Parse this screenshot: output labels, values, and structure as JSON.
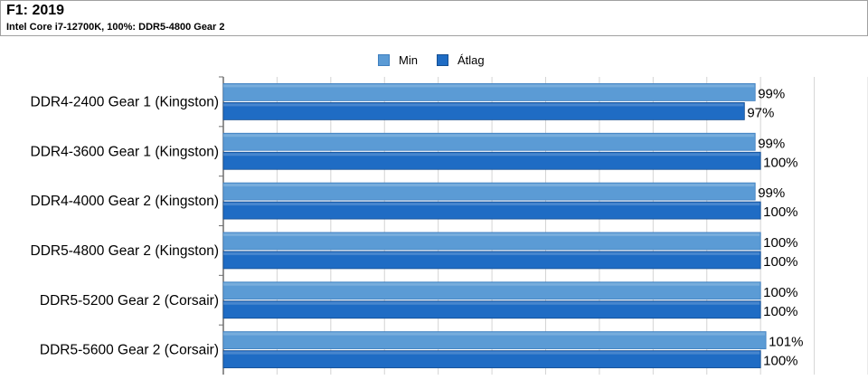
{
  "header": {
    "title": "F1: 2019",
    "subtitle": "Intel Core i7-12700K, 100%: DDR5-4800 Gear 2"
  },
  "colors": {
    "min": "#5b9bd5",
    "avg": "#1f6cc4",
    "grid": "#d4d4d4",
    "axis": "#6e6e6e"
  },
  "chart_data": {
    "type": "bar",
    "orientation": "horizontal",
    "title": "F1: 2019",
    "subtitle": "Intel Core i7-12700K, 100%: DDR5-4800 Gear 2",
    "legend_position": "top-center",
    "grid": true,
    "xlim": [
      0,
      120
    ],
    "categories": [
      "DDR4-2400 Gear 1 (Kingston)",
      "DDR4-3600 Gear 1 (Kingston)",
      "DDR4-4000 Gear 2 (Kingston)",
      "DDR5-4800 Gear 2 (Kingston)",
      "DDR5-5200 Gear 2 (Corsair)",
      "DDR5-5600 Gear 2 (Corsair)"
    ],
    "series": [
      {
        "name": "Min",
        "values": [
          99,
          99,
          99,
          100,
          100,
          101
        ],
        "labels": [
          "99%",
          "99%",
          "99%",
          "100%",
          "100%",
          "101%"
        ]
      },
      {
        "name": "Átlag",
        "values": [
          97,
          100,
          100,
          100,
          100,
          100
        ],
        "labels": [
          "97%",
          "100%",
          "100%",
          "100%",
          "100%",
          "100%"
        ]
      }
    ]
  }
}
